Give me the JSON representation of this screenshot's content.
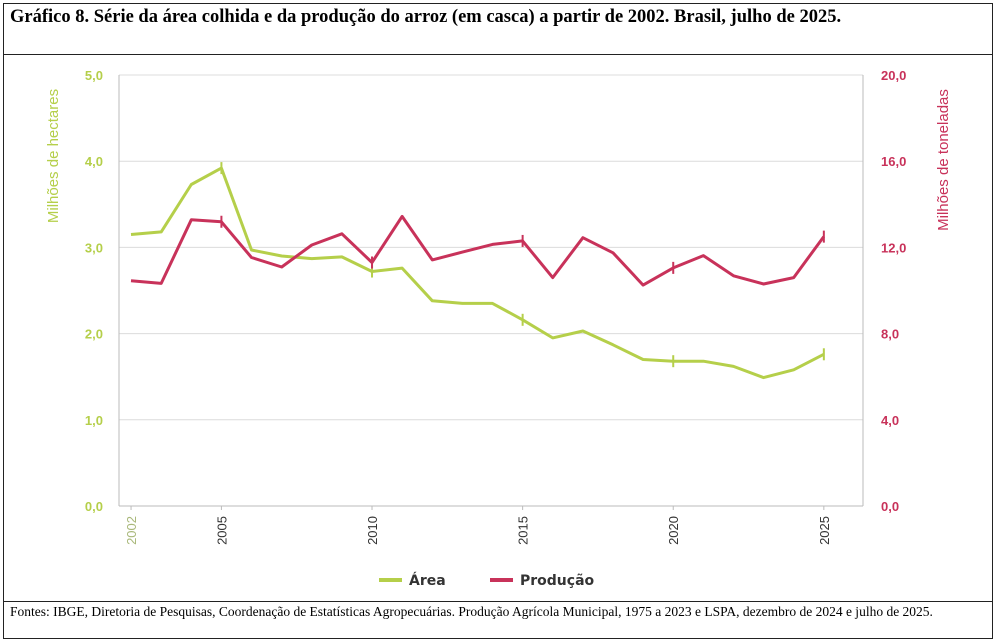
{
  "title": "Gráfico 8. Série da área colhida e da produção do arroz (em casca) a partir de 2002. Brasil, julho de 2025.",
  "footer": "Fontes: IBGE, Diretoria de Pesquisas, Coordenação de Estatísticas Agropecuárias. Produção Agrícola Municipal, 1975 a 2023 e LSPA, dezembro de 2024 e julho de 2025.",
  "colors": {
    "area": "#b5cf4a",
    "producao": "#c8325a",
    "grid": "#dcdcdc"
  },
  "chart_data": {
    "type": "line",
    "ylabel_left": "Milhões de hectares",
    "ylabel_right": "Milhões de toneladas",
    "ylim_left": [
      0,
      5
    ],
    "ylim_right": [
      0,
      20
    ],
    "yticks_left": [
      "0,0",
      "1,0",
      "2,0",
      "3,0",
      "4,0",
      "5,0"
    ],
    "yticks_right": [
      "0,0",
      "4,0",
      "8,0",
      "12,0",
      "16,0",
      "20,0"
    ],
    "x": [
      2002,
      2003,
      2004,
      2005,
      2006,
      2007,
      2008,
      2009,
      2010,
      2011,
      2012,
      2013,
      2014,
      2015,
      2016,
      2017,
      2018,
      2019,
      2020,
      2021,
      2022,
      2023,
      2024,
      2025
    ],
    "xticks": [
      "2002",
      "2005",
      "2010",
      "2015",
      "2020",
      "2025"
    ],
    "grid": true,
    "legend_position": "bottom-center",
    "series": [
      {
        "name": "Área",
        "axis": "left",
        "values": [
          3.15,
          3.18,
          3.73,
          3.92,
          2.97,
          2.9,
          2.87,
          2.89,
          2.72,
          2.76,
          2.38,
          2.35,
          2.35,
          2.16,
          1.95,
          2.03,
          1.87,
          1.7,
          1.68,
          1.68,
          1.62,
          1.49,
          1.58,
          1.76
        ]
      },
      {
        "name": "Produção",
        "axis": "right",
        "values": [
          10.45,
          10.33,
          13.28,
          13.19,
          11.53,
          11.09,
          12.11,
          12.63,
          11.3,
          13.44,
          11.42,
          11.78,
          12.14,
          12.3,
          10.6,
          12.45,
          11.75,
          10.25,
          11.05,
          11.62,
          10.68,
          10.3,
          10.6,
          12.5
        ]
      }
    ]
  }
}
